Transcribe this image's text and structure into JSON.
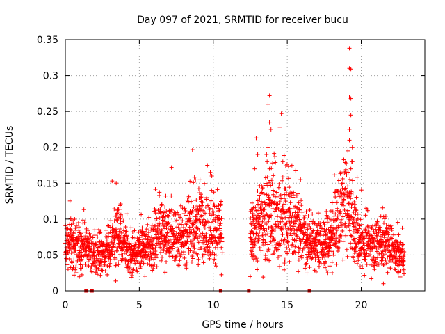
{
  "chart_data": {
    "type": "scatter",
    "title": "Day 097 of 2021, SRMTID for receiver bucu",
    "xlabel": "GPS time / hours",
    "ylabel": "SRMTID / TECUs",
    "xlim": [
      0,
      24.3
    ],
    "ylim": [
      0,
      0.35
    ],
    "xticks": [
      0,
      5,
      10,
      15,
      20
    ],
    "xtick_labels": [
      "0",
      "5",
      "10",
      "15",
      "20"
    ],
    "yticks": [
      0,
      0.05,
      0.1,
      0.15,
      0.2,
      0.25,
      0.3,
      0.35
    ],
    "ytick_labels": [
      "0",
      "0.05",
      "0.1",
      "0.15",
      "0.2",
      "0.25",
      "0.3",
      "0.35"
    ],
    "grid": true,
    "series": [
      {
        "name": "SRMTID",
        "marker": "+",
        "color": "#ff0000",
        "profile_mean": [
          [
            0.0,
            0.06
          ],
          [
            0.5,
            0.066
          ],
          [
            1.0,
            0.062
          ],
          [
            1.5,
            0.058
          ],
          [
            2.0,
            0.05
          ],
          [
            2.5,
            0.05
          ],
          [
            3.0,
            0.058
          ],
          [
            3.5,
            0.085
          ],
          [
            4.0,
            0.058
          ],
          [
            4.5,
            0.052
          ],
          [
            5.0,
            0.055
          ],
          [
            5.5,
            0.06
          ],
          [
            6.0,
            0.07
          ],
          [
            6.5,
            0.09
          ],
          [
            7.0,
            0.078
          ],
          [
            7.5,
            0.075
          ],
          [
            8.0,
            0.08
          ],
          [
            8.5,
            0.085
          ],
          [
            9.0,
            0.1
          ],
          [
            9.5,
            0.09
          ],
          [
            10.0,
            0.09
          ],
          [
            10.5,
            0.085
          ],
          [
            12.5,
            0.075
          ],
          [
            13.0,
            0.09
          ],
          [
            13.5,
            0.1
          ],
          [
            14.0,
            0.11
          ],
          [
            14.5,
            0.095
          ],
          [
            15.0,
            0.1
          ],
          [
            15.5,
            0.1
          ],
          [
            16.0,
            0.075
          ],
          [
            16.5,
            0.068
          ],
          [
            17.0,
            0.068
          ],
          [
            17.5,
            0.065
          ],
          [
            18.0,
            0.075
          ],
          [
            18.5,
            0.1
          ],
          [
            19.0,
            0.12
          ],
          [
            19.5,
            0.09
          ],
          [
            20.0,
            0.065
          ],
          [
            20.5,
            0.065
          ],
          [
            21.0,
            0.07
          ],
          [
            21.5,
            0.07
          ],
          [
            22.0,
            0.06
          ],
          [
            22.5,
            0.05
          ],
          [
            22.9,
            0.045
          ]
        ],
        "highlights": [
          [
            13.8,
            0.272
          ],
          [
            13.7,
            0.26
          ],
          [
            13.8,
            0.235
          ],
          [
            13.9,
            0.225
          ],
          [
            13.7,
            0.2
          ],
          [
            13.6,
            0.19
          ],
          [
            13.8,
            0.17
          ],
          [
            14.6,
            0.247
          ],
          [
            14.5,
            0.228
          ],
          [
            14.7,
            0.18
          ],
          [
            12.9,
            0.213
          ],
          [
            13.0,
            0.19
          ],
          [
            12.8,
            0.17
          ],
          [
            19.2,
            0.338
          ],
          [
            19.2,
            0.31
          ],
          [
            19.3,
            0.309
          ],
          [
            19.2,
            0.27
          ],
          [
            19.3,
            0.268
          ],
          [
            19.3,
            0.245
          ],
          [
            19.2,
            0.225
          ],
          [
            19.2,
            0.21
          ],
          [
            19.4,
            0.2
          ],
          [
            19.1,
            0.195
          ],
          [
            19.4,
            0.18
          ],
          [
            19.3,
            0.17
          ],
          [
            9.6,
            0.175
          ],
          [
            9.8,
            0.165
          ],
          [
            9.9,
            0.16
          ],
          [
            15.9,
            0.155
          ],
          [
            21.5,
            0.01
          ],
          [
            12.5,
            0.02
          ],
          [
            0.6,
            0.022
          ]
        ]
      },
      {
        "name": "data gaps",
        "marker": "square",
        "color": "#e00000",
        "x": [
          1.4,
          1.8,
          10.5,
          12.4,
          16.5
        ],
        "y": [
          0,
          0,
          0,
          0,
          0
        ]
      }
    ]
  }
}
